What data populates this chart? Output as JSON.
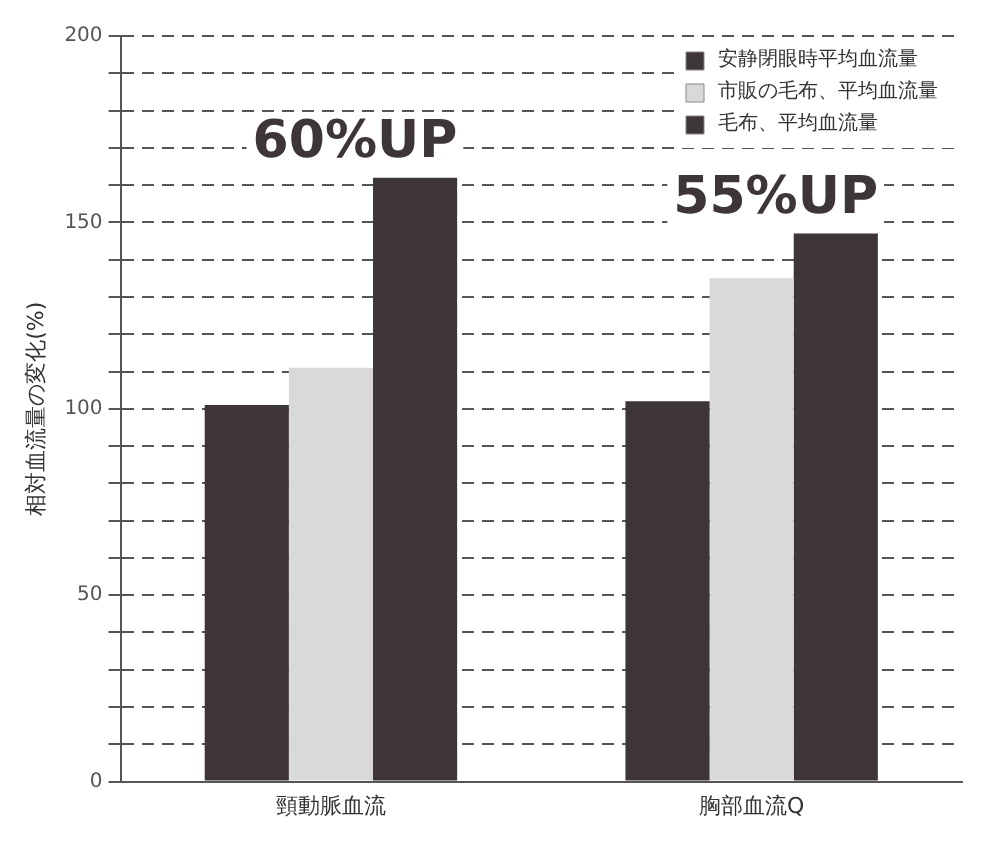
{
  "chart_data": {
    "type": "bar",
    "ylabel": "相対血流量の変化(%)",
    "categories": [
      "頸動脈血流",
      "胸部血流Q"
    ],
    "series": [
      {
        "name": "安静閉眼時平均血流量",
        "color": "#3d3537",
        "values": [
          101,
          102
        ]
      },
      {
        "name": "市販の毛布、平均血流量",
        "color": "#d9d9d9",
        "values": [
          111,
          135
        ]
      },
      {
        "name": "毛布、平均血流量",
        "color": "#3d3537",
        "values": [
          162,
          147
        ]
      }
    ],
    "ylim": [
      0,
      200
    ],
    "yticks": [
      0,
      {
        "value": 10,
        "label": null
      },
      {
        "value": 20,
        "label": null
      },
      {
        "value": 30,
        "label": null
      },
      {
        "value": 40,
        "label": null
      },
      50,
      {
        "value": 60,
        "label": null
      },
      {
        "value": 70,
        "label": null
      },
      {
        "value": 80,
        "label": null
      },
      {
        "value": 90,
        "label": null
      },
      100,
      {
        "value": 110,
        "label": null
      },
      {
        "value": 120,
        "label": null
      },
      {
        "value": 130,
        "label": null
      },
      {
        "value": 140,
        "label": null
      },
      150,
      {
        "value": 160,
        "label": null
      },
      {
        "value": 170,
        "label": null
      },
      {
        "value": 180,
        "label": null
      },
      {
        "value": 190,
        "label": null
      },
      200
    ],
    "grid": "y",
    "line_style": "dashed",
    "legend": "top right",
    "annotations": [
      "60%UP",
      "55%UP"
    ]
  }
}
